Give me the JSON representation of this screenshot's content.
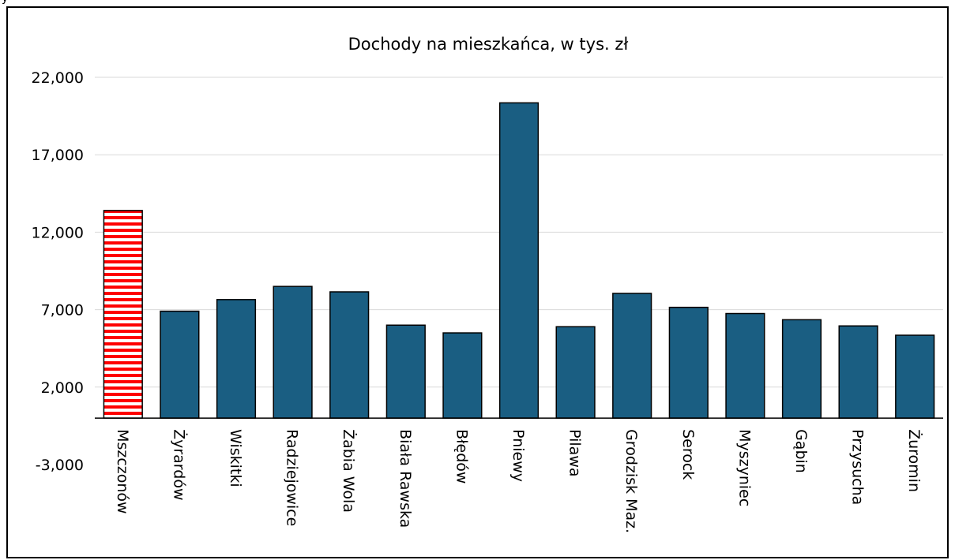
{
  "chart_data": {
    "type": "bar",
    "title": "Dochody na mieszkańca, w tys. zł",
    "xlabel": "",
    "ylabel": "",
    "ylim": [
      -3000,
      22000
    ],
    "yticks": [
      22000,
      17000,
      12000,
      7000,
      2000,
      -3000
    ],
    "ytick_labels": [
      "22,000",
      "17,000",
      "12,000",
      "7,000",
      "2,000",
      "-3,000"
    ],
    "grid": true,
    "legend": "none",
    "categories": [
      "Mszczonów",
      "Żyrardów",
      "Wiskitki",
      "Radziejowice",
      "Żabia Wola",
      "Biała Rawska",
      "Błędów",
      "Pniewy",
      "Pilawa",
      "Grodzisk Maz.",
      "Serock",
      "Myszyniec",
      "Gąbin",
      "Przysucha",
      "Żuromin"
    ],
    "values": [
      13400,
      6900,
      7650,
      8500,
      8150,
      6000,
      5500,
      20350,
      5900,
      8050,
      7150,
      6750,
      6350,
      5950,
      5350
    ],
    "colors": {
      "bar": "#1a5e82",
      "highlight_stripe_red": "#ff0000",
      "highlight_stripe_white": "#ffffff",
      "gridline": "#d9d9d9",
      "axis": "#000000"
    },
    "highlight_index": 0
  }
}
